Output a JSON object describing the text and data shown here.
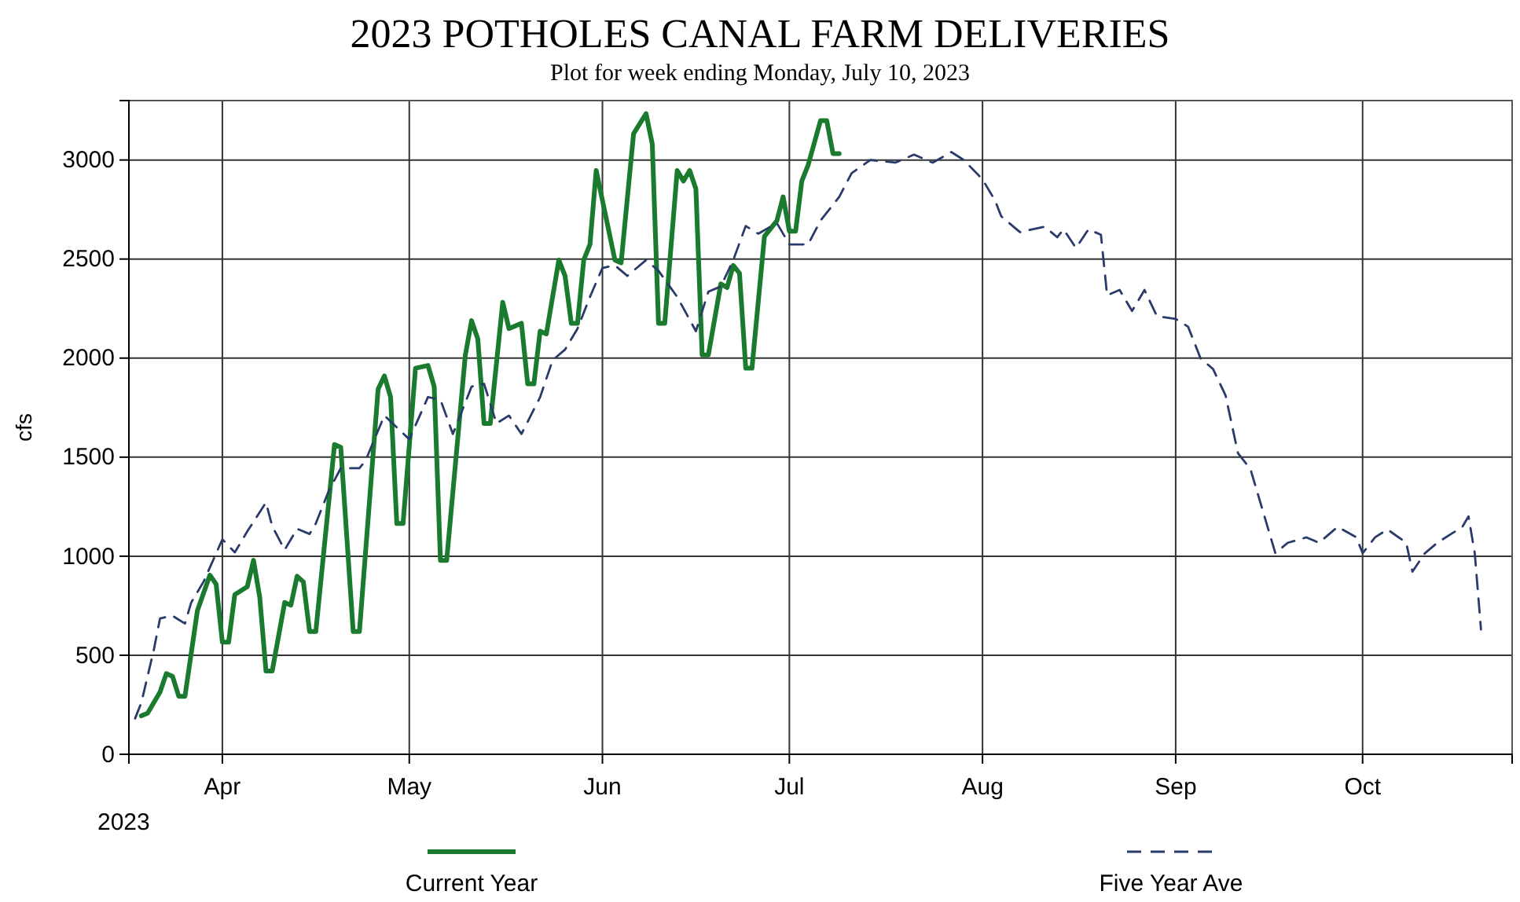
{
  "chart_data": {
    "type": "line",
    "title": "2023 POTHOLES CANAL FARM DELIVERIES",
    "subtitle": "Plot for week ending Monday, July 10, 2023",
    "ylabel": "cfs",
    "annotations": [
      "2023"
    ],
    "xlim": [
      "2023-03-17",
      "2023-10-25"
    ],
    "ylim": [
      0,
      3300
    ],
    "xticks": [
      {
        "value": "2023-04-01",
        "label": "Apr"
      },
      {
        "value": "2023-05-01",
        "label": "May"
      },
      {
        "value": "2023-06-01",
        "label": "Jun"
      },
      {
        "value": "2023-07-01",
        "label": "Jul"
      },
      {
        "value": "2023-08-01",
        "label": "Aug"
      },
      {
        "value": "2023-09-01",
        "label": "Sep"
      },
      {
        "value": "2023-10-01",
        "label": "Oct"
      }
    ],
    "yticks": [
      0,
      500,
      1000,
      1500,
      2000,
      2500,
      3000
    ],
    "grid": true,
    "legend": "bottom",
    "marker": "none",
    "series": [
      {
        "name": "Current Year",
        "color": "#1a7a2e",
        "line_style": "solid",
        "x": [
          "2023-03-19",
          "2023-03-20",
          "2023-03-22",
          "2023-03-23",
          "2023-03-24",
          "2023-03-25",
          "2023-03-26",
          "2023-03-28",
          "2023-03-30",
          "2023-03-31",
          "2023-04-01",
          "2023-04-02",
          "2023-04-03",
          "2023-04-05",
          "2023-04-06",
          "2023-04-07",
          "2023-04-08",
          "2023-04-09",
          "2023-04-11",
          "2023-04-12",
          "2023-04-13",
          "2023-04-14",
          "2023-04-15",
          "2023-04-16",
          "2023-04-19",
          "2023-04-20",
          "2023-04-22",
          "2023-04-23",
          "2023-04-26",
          "2023-04-27",
          "2023-04-28",
          "2023-04-29",
          "2023-04-30",
          "2023-05-02",
          "2023-05-04",
          "2023-05-05",
          "2023-05-06",
          "2023-05-07",
          "2023-05-10",
          "2023-05-11",
          "2023-05-12",
          "2023-05-13",
          "2023-05-14",
          "2023-05-16",
          "2023-05-17",
          "2023-05-19",
          "2023-05-20",
          "2023-05-21",
          "2023-05-22",
          "2023-05-23",
          "2023-05-25",
          "2023-05-26",
          "2023-05-27",
          "2023-05-28",
          "2023-05-29",
          "2023-05-30",
          "2023-05-31",
          "2023-06-03",
          "2023-06-04",
          "2023-06-06",
          "2023-06-08",
          "2023-06-09",
          "2023-06-10",
          "2023-06-11",
          "2023-06-13",
          "2023-06-14",
          "2023-06-15",
          "2023-06-16",
          "2023-06-17",
          "2023-06-18",
          "2023-06-20",
          "2023-06-21",
          "2023-06-22",
          "2023-06-23",
          "2023-06-24",
          "2023-06-25",
          "2023-06-27",
          "2023-06-29",
          "2023-06-30",
          "2023-07-01",
          "2023-07-02",
          "2023-07-03",
          "2023-07-04",
          "2023-07-06",
          "2023-07-07",
          "2023-07-08",
          "2023-07-09"
        ],
        "values": [
          194,
          207,
          314,
          407,
          394,
          293,
          293,
          726,
          904,
          859,
          566,
          566,
          806,
          846,
          979,
          793,
          420,
          420,
          766,
          753,
          899,
          870,
          620,
          620,
          1564,
          1550,
          620,
          620,
          1843,
          1910,
          1803,
          1165,
          1165,
          1949,
          1963,
          1856,
          979,
          979,
          2016,
          2189,
          2096,
          1670,
          1670,
          2282,
          2149,
          2176,
          1870,
          1870,
          2136,
          2122,
          2495,
          2415,
          2176,
          2176,
          2495,
          2574,
          2947,
          2495,
          2481,
          3133,
          3234,
          3080,
          2176,
          2176,
          2947,
          2894,
          2947,
          2854,
          2016,
          2016,
          2375,
          2356,
          2468,
          2428,
          1949,
          1949,
          2614,
          2694,
          2814,
          2641,
          2641,
          2894,
          2973,
          3199,
          3199,
          3032,
          3032
        ]
      },
      {
        "name": "Five Year Ave",
        "color": "#2a3a6a",
        "line_style": "dashed",
        "x": [
          "2023-03-18",
          "2023-03-19",
          "2023-03-21",
          "2023-03-22",
          "2023-03-24",
          "2023-03-26",
          "2023-03-27",
          "2023-03-29",
          "2023-04-01",
          "2023-04-03",
          "2023-04-05",
          "2023-04-08",
          "2023-04-09",
          "2023-04-11",
          "2023-04-13",
          "2023-04-15",
          "2023-04-16",
          "2023-04-18",
          "2023-04-20",
          "2023-04-23",
          "2023-04-24",
          "2023-04-27",
          "2023-05-01",
          "2023-05-04",
          "2023-05-06",
          "2023-05-08",
          "2023-05-11",
          "2023-05-13",
          "2023-05-15",
          "2023-05-17",
          "2023-05-19",
          "2023-05-22",
          "2023-05-24",
          "2023-05-26",
          "2023-05-28",
          "2023-05-30",
          "2023-06-01",
          "2023-06-03",
          "2023-06-05",
          "2023-06-08",
          "2023-06-10",
          "2023-06-13",
          "2023-06-16",
          "2023-06-18",
          "2023-06-20",
          "2023-06-22",
          "2023-06-24",
          "2023-06-26",
          "2023-06-29",
          "2023-07-01",
          "2023-07-04",
          "2023-07-06",
          "2023-07-09",
          "2023-07-11",
          "2023-07-14",
          "2023-07-18",
          "2023-07-21",
          "2023-07-24",
          "2023-07-27",
          "2023-07-29",
          "2023-08-01",
          "2023-08-03",
          "2023-08-04",
          "2023-08-07",
          "2023-08-09",
          "2023-08-11",
          "2023-08-13",
          "2023-08-14",
          "2023-08-16",
          "2023-08-18",
          "2023-08-20",
          "2023-08-21",
          "2023-08-23",
          "2023-08-25",
          "2023-08-27",
          "2023-08-29",
          "2023-09-01",
          "2023-09-03",
          "2023-09-05",
          "2023-09-07",
          "2023-09-09",
          "2023-09-11",
          "2023-09-13",
          "2023-09-15",
          "2023-09-17",
          "2023-09-19",
          "2023-09-22",
          "2023-09-24",
          "2023-09-27",
          "2023-09-30",
          "2023-10-01",
          "2023-10-03",
          "2023-10-05",
          "2023-10-08",
          "2023-10-09",
          "2023-10-11",
          "2023-10-13",
          "2023-10-15",
          "2023-10-17",
          "2023-10-18",
          "2023-10-19",
          "2023-10-20"
        ],
        "values": [
          181,
          261,
          527,
          686,
          699,
          660,
          766,
          872,
          1085,
          1019,
          1125,
          1271,
          1152,
          1032,
          1138,
          1112,
          1165,
          1324,
          1444,
          1444,
          1484,
          1710,
          1590,
          1803,
          1790,
          1617,
          1856,
          1870,
          1670,
          1710,
          1617,
          1803,
          1989,
          2043,
          2149,
          2309,
          2455,
          2468,
          2415,
          2495,
          2441,
          2309,
          2136,
          2335,
          2362,
          2495,
          2667,
          2628,
          2681,
          2574,
          2574,
          2694,
          2814,
          2934,
          3000,
          2987,
          3027,
          2987,
          3040,
          3000,
          2902,
          2796,
          2716,
          2636,
          2650,
          2663,
          2610,
          2650,
          2556,
          2650,
          2623,
          2317,
          2344,
          2238,
          2344,
          2211,
          2198,
          2158,
          1998,
          1945,
          1812,
          1520,
          1440,
          1228,
          1015,
          1068,
          1095,
          1068,
          1148,
          1095,
          1015,
          1095,
          1135,
          1068,
          922,
          1015,
          1068,
          1108,
          1148,
          1201,
          1015,
          630
        ]
      }
    ]
  }
}
